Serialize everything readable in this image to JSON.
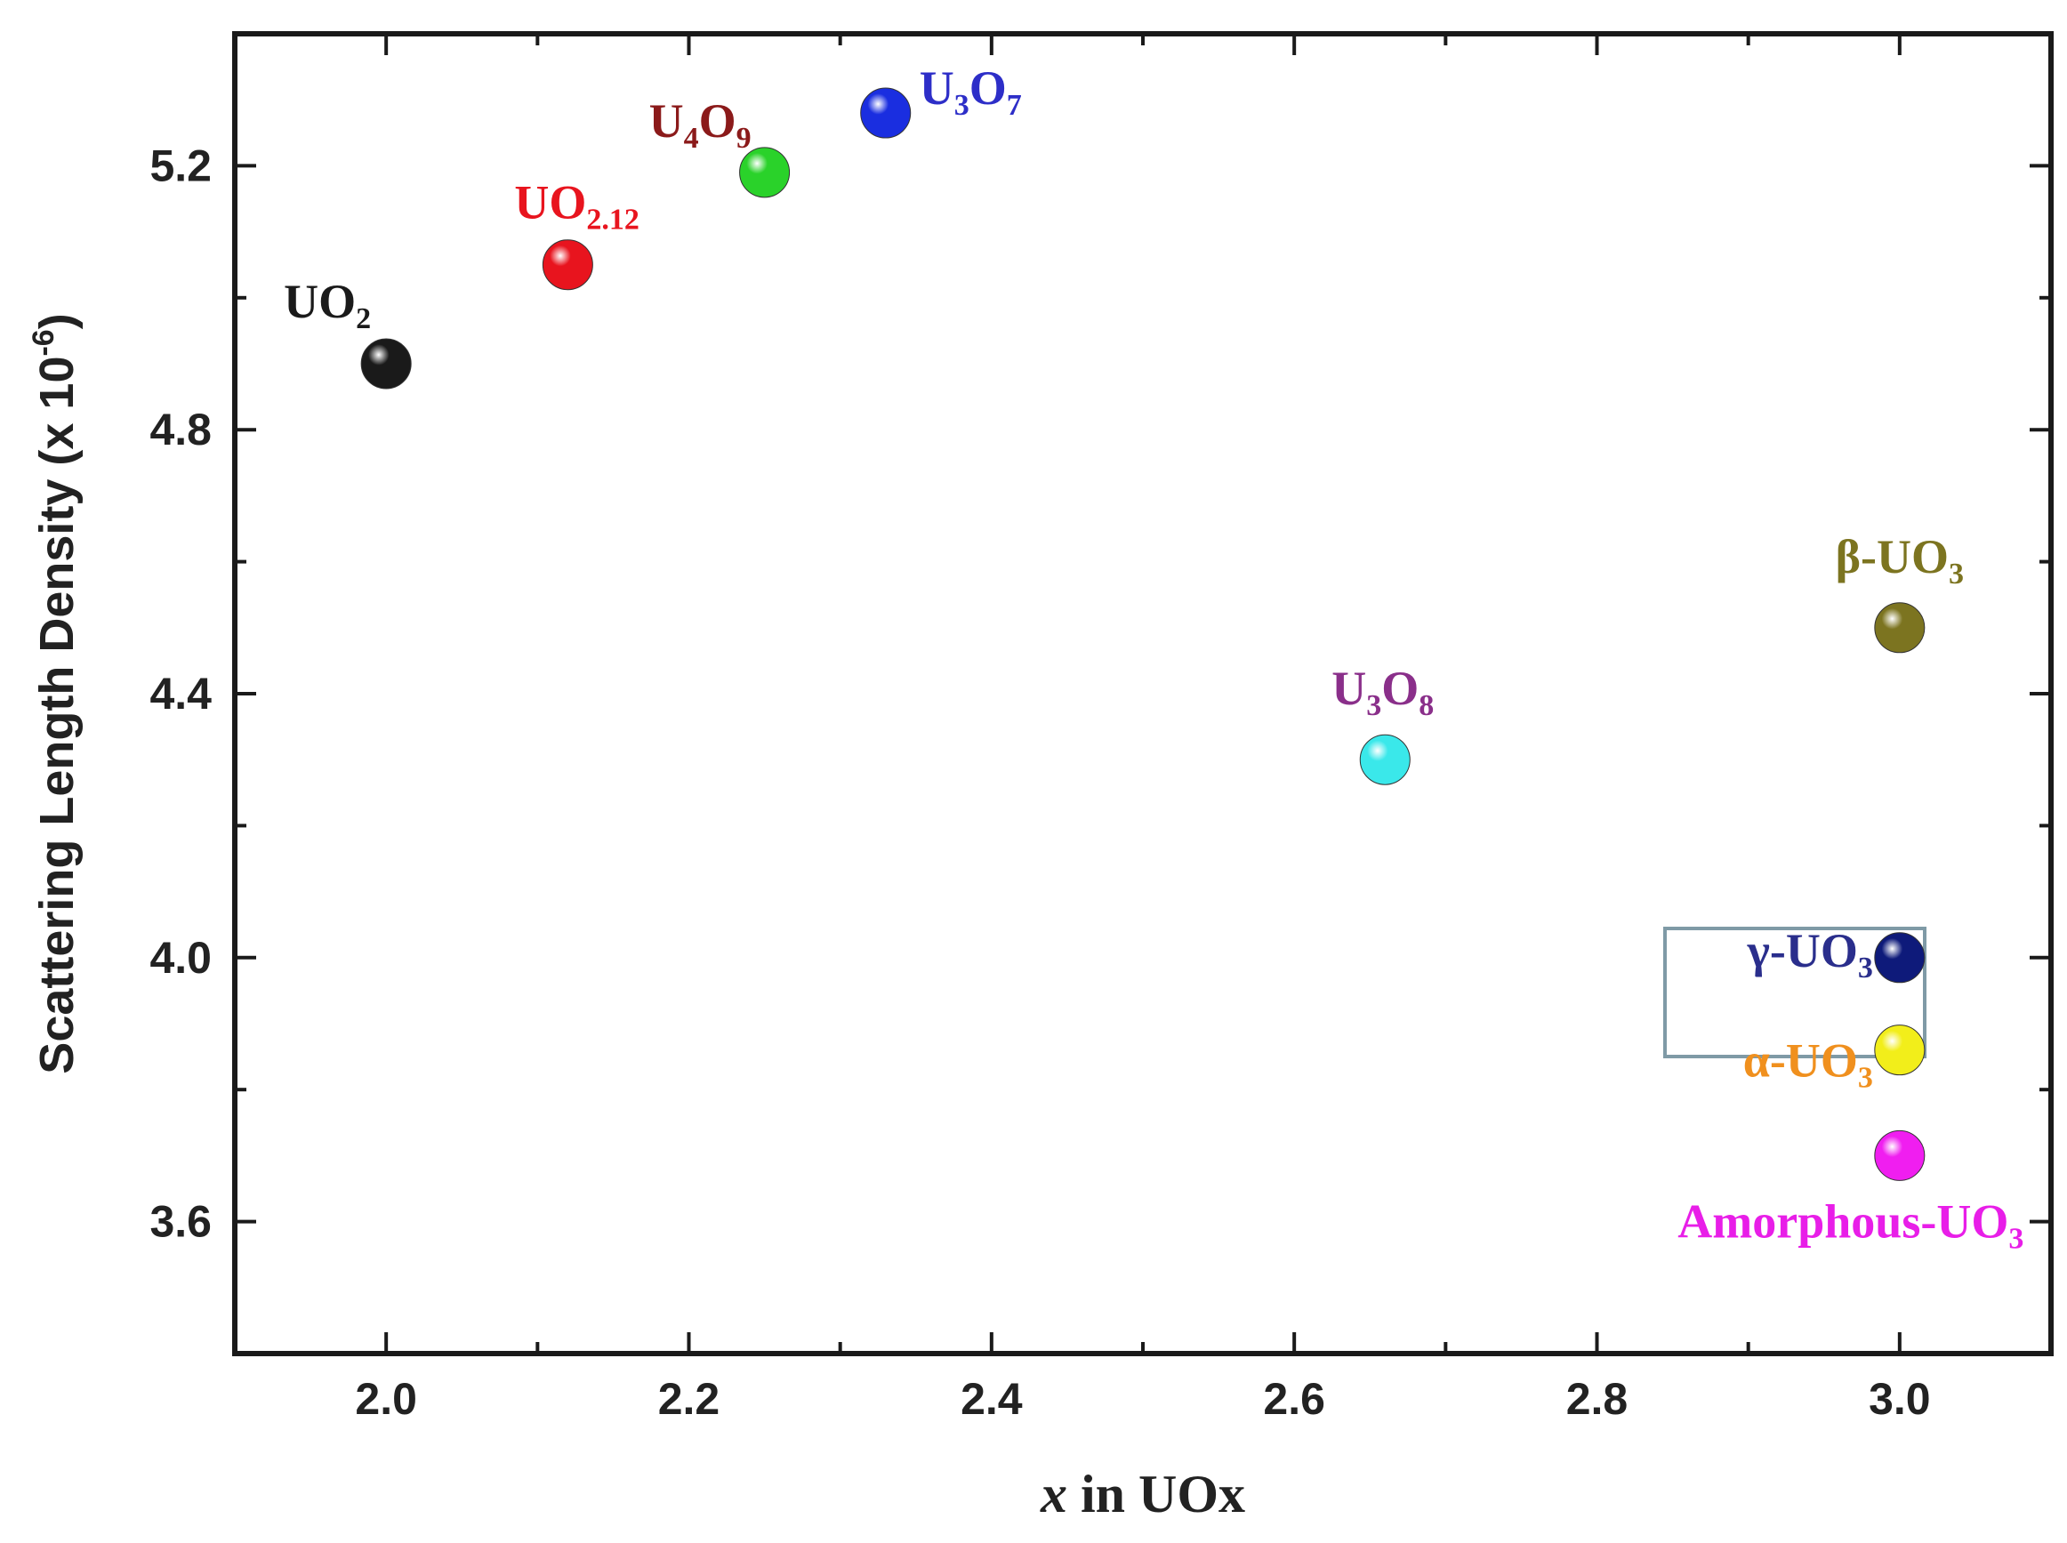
{
  "chart_data": {
    "type": "scatter",
    "xlabel": {
      "italic": "x",
      "rest": " in UOx"
    },
    "ylabel": {
      "base": "Scattering Length Density (x 10",
      "exp": "-6",
      "tail": ")"
    },
    "xlim": [
      1.9,
      3.1
    ],
    "ylim": [
      3.4,
      5.4
    ],
    "x_ticks": [
      "2.0",
      "2.2",
      "2.4",
      "2.6",
      "2.8",
      "3.0"
    ],
    "y_ticks": [
      "3.6",
      "4.0",
      "4.4",
      "4.8",
      "5.2"
    ],
    "grid": false,
    "highlight_box_around": "γ-UO3",
    "points": [
      {
        "x": 2.0,
        "y": 4.9,
        "color": "#1a1a1a",
        "label_color": "#1a1a1a",
        "label": {
          "base": "UO",
          "sub": "2"
        }
      },
      {
        "x": 2.12,
        "y": 5.05,
        "color": "#e8141e",
        "label_color": "#e8141e",
        "label": {
          "base": "UO",
          "sub": "2.12"
        }
      },
      {
        "x": 2.25,
        "y": 5.19,
        "color": "#2ad22a",
        "label_color": "#8b1a1a",
        "label": {
          "base": "U",
          "sub": "4",
          "mid": "O",
          "sub2": "9"
        }
      },
      {
        "x": 2.33,
        "y": 5.28,
        "color": "#1a2ee0",
        "label_color": "#2d2ec8",
        "label": {
          "base": "U",
          "sub": "3",
          "mid": "O",
          "sub2": "7"
        }
      },
      {
        "x": 2.66,
        "y": 4.3,
        "color": "#3ae8ea",
        "label_color": "#8a2f8a",
        "label": {
          "base": "U",
          "sub": "3",
          "mid": "O",
          "sub2": "8"
        }
      },
      {
        "x": 3.0,
        "y": 4.5,
        "color": "#7c7420",
        "label_color": "#7c7420",
        "label": {
          "base": "β-UO",
          "sub": "3"
        }
      },
      {
        "x": 3.0,
        "y": 4.0,
        "color": "#0e1a7a",
        "label_color": "#2a2e8c",
        "label": {
          "base": "γ-UO",
          "sub": "3"
        }
      },
      {
        "x": 3.0,
        "y": 3.86,
        "color": "#f2ee1a",
        "label_color": "#f0901e",
        "label": {
          "base": "α-UO",
          "sub": "3"
        }
      },
      {
        "x": 3.0,
        "y": 3.7,
        "color": "#f01ef0",
        "label_color": "#e81ee8",
        "label": {
          "base": "Amorphous-UO",
          "sub": "3"
        }
      }
    ]
  }
}
